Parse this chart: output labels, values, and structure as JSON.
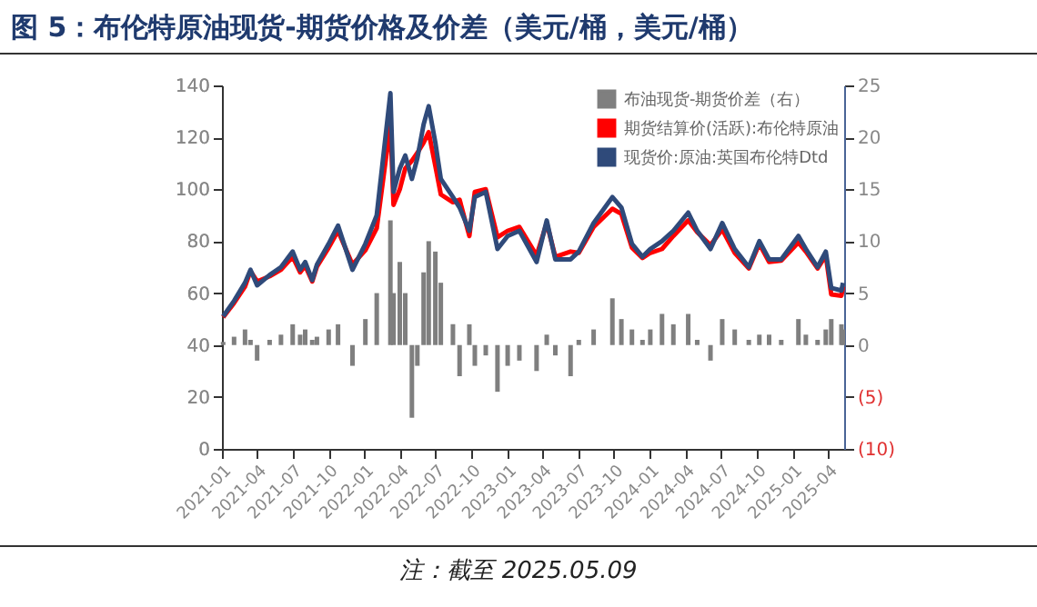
{
  "chart_data": {
    "type": "line",
    "title": "图 5：布伦特原油现货-期货价格及价差（美元/桶，美元/桶）",
    "annotations": [
      "注：截至 2025.05.09"
    ],
    "x": [
      "2021-01-04",
      "2021-02-01",
      "2021-03-01",
      "2021-03-15",
      "2021-04-01",
      "2021-05-03",
      "2021-06-01",
      "2021-07-01",
      "2021-07-20",
      "2021-08-02",
      "2021-08-20",
      "2021-09-01",
      "2021-10-01",
      "2021-10-25",
      "2021-12-01",
      "2022-01-03",
      "2022-02-01",
      "2022-03-08",
      "2022-03-16",
      "2022-04-01",
      "2022-04-15",
      "2022-05-02",
      "2022-05-16",
      "2022-06-01",
      "2022-06-14",
      "2022-07-01",
      "2022-07-15",
      "2022-08-15",
      "2022-09-01",
      "2022-09-26",
      "2022-10-10",
      "2022-11-07",
      "2022-12-07",
      "2023-01-02",
      "2023-02-01",
      "2023-03-17",
      "2023-04-12",
      "2023-05-04",
      "2023-06-12",
      "2023-07-03",
      "2023-08-10",
      "2023-09-27",
      "2023-10-20",
      "2023-11-16",
      "2023-12-13",
      "2024-01-02",
      "2024-02-01",
      "2024-03-01",
      "2024-04-08",
      "2024-05-01",
      "2024-06-04",
      "2024-07-04",
      "2024-08-05",
      "2024-09-10",
      "2024-10-07",
      "2024-11-01",
      "2024-12-02",
      "2025-01-15",
      "2025-02-03",
      "2025-03-05",
      "2025-03-26",
      "2025-04-09",
      "2025-05-05",
      "2025-05-09"
    ],
    "series": [
      {
        "name": "布油现货-期货价差（右）",
        "type": "bar",
        "axis": "y2",
        "color": "#7f7f7f",
        "values": [
          0.3,
          0.8,
          1.5,
          0.5,
          -1.5,
          0.5,
          1.0,
          2.0,
          1.0,
          1.5,
          0.5,
          0.8,
          1.5,
          2.0,
          -2.0,
          2.5,
          5.0,
          12,
          5,
          8,
          5,
          -7,
          -2,
          7,
          10,
          9,
          6,
          2,
          -3,
          2,
          -2,
          -1,
          -4.5,
          -2,
          -1.5,
          -2.5,
          1,
          -1,
          -3,
          0.5,
          1.5,
          4.5,
          2.5,
          1.5,
          0.5,
          1.5,
          3,
          2,
          3,
          0.5,
          -1.5,
          2.5,
          1.5,
          0.5,
          1,
          1,
          0.5,
          2.5,
          1,
          0.5,
          1.5,
          2.5,
          2,
          1.5
        ]
      },
      {
        "name": "期货结算价(活跃):布伦特原油",
        "type": "line",
        "color": "#ff0000",
        "values": [
          50.7,
          56.2,
          62.5,
          68.5,
          64.5,
          66.5,
          69,
          74,
          68,
          70.5,
          64.5,
          70.2,
          77.5,
          84,
          71,
          76.5,
          85,
          125,
          94,
          100,
          108,
          111,
          114,
          118,
          122,
          109,
          98,
          95,
          96,
          82,
          99,
          100,
          81.5,
          84,
          85.5,
          74.5,
          87,
          74,
          76,
          75.5,
          85.5,
          92.5,
          90.5,
          77.5,
          73.5,
          75.5,
          77,
          82,
          88,
          83.5,
          78.5,
          84.5,
          75.5,
          69.5,
          79,
          72,
          72.5,
          79.5,
          76,
          69.5,
          74.5,
          59.5,
          59,
          62.5
        ]
      },
      {
        "name": "现货价:原油:英国布伦特Dtd",
        "type": "line",
        "color": "#2f4a7a",
        "values": [
          51,
          57,
          64,
          69,
          63,
          67,
          70,
          76,
          69,
          72,
          65,
          71,
          79,
          86,
          69,
          79,
          90,
          137,
          99,
          108,
          113,
          104,
          112,
          125,
          132,
          118,
          104,
          97,
          93,
          84,
          97,
          99,
          77,
          82,
          84,
          72,
          88,
          73,
          73,
          76,
          87,
          97,
          93,
          79,
          74,
          77,
          80,
          84,
          91,
          84,
          77,
          87,
          77,
          70,
          80,
          73,
          73,
          82,
          77,
          70,
          76,
          62,
          61,
          64
        ]
      }
    ],
    "xlim": [
      "2021-01-01",
      "2025-05-12"
    ],
    "xticks": [
      "2021-01",
      "2021-04",
      "2021-07",
      "2021-10",
      "2022-01",
      "2022-04",
      "2022-07",
      "2022-10",
      "2023-01",
      "2023-04",
      "2023-07",
      "2023-10",
      "2024-01",
      "2024-04",
      "2024-07",
      "2024-10",
      "2025-01",
      "2025-04"
    ],
    "ylim": [
      0,
      140
    ],
    "yticks": [
      0,
      20,
      40,
      60,
      80,
      100,
      120,
      140
    ],
    "y2lim": [
      -10,
      25
    ],
    "y2ticks": [
      {
        "value": -10,
        "label": "(10)"
      },
      {
        "value": -5,
        "label": "(5)"
      },
      0,
      5,
      10,
      15,
      20,
      25
    ],
    "grid": false,
    "legend": "top right"
  }
}
